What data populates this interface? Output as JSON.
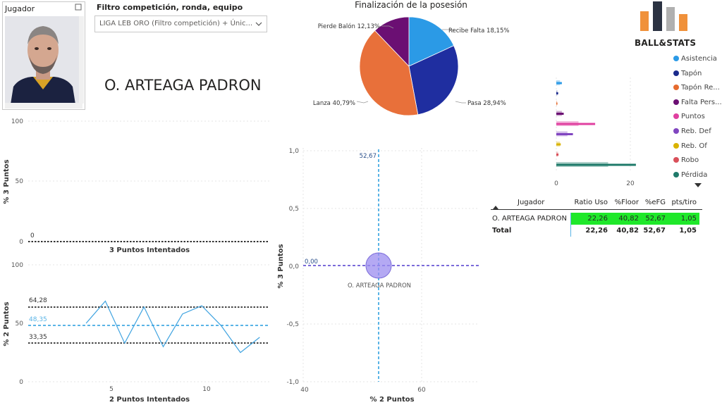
{
  "slicer": {
    "header": "Jugador"
  },
  "filter": {
    "title": "Filtro competición, ronda, equipo",
    "value": "LIGA LEB ORO (Filtro competición) + Únic..."
  },
  "player": {
    "name": "O. ARTEAGA PADRON"
  },
  "chart_3p": {
    "ylabel": "% 3 Puntos",
    "xlabel": "3 Puntos Intentados",
    "ticks": [
      "100",
      "50",
      "0"
    ],
    "ref_label": "0"
  },
  "chart_2p": {
    "ylabel": "% 2 Puntos",
    "xlabel": "2 Puntos Intentados",
    "yticks": [
      "100",
      "50",
      "0"
    ],
    "xticks": [
      "5",
      "10"
    ],
    "ref_labels": [
      "64,28",
      "48,35",
      "33,35"
    ]
  },
  "pie": {
    "title": "Finalización de la posesión",
    "labels": [
      "Recibe Falta 18,15%",
      "Pasa 28,94%",
      "Lanza 40,79%",
      "Pierde Balón 12,13%"
    ]
  },
  "scatter": {
    "ylabel": "% 3 Puntos",
    "xlabel": "% 2 Puntos",
    "yticks": [
      "1,0",
      "0,5",
      "0,0",
      "-0,5",
      "-1,0"
    ],
    "xticks": [
      "40",
      "60"
    ],
    "vline_label": "52,67",
    "hline_label": "0,00",
    "point_label": "O. ARTEAGA PADRON"
  },
  "logo": {
    "text": "BALL&STATS"
  },
  "legend": {
    "items": [
      {
        "label": "Asistencia",
        "color": "#2b9ae6"
      },
      {
        "label": "Tapón",
        "color": "#1a2a8c"
      },
      {
        "label": "Tapón Re...",
        "color": "#e66b2e"
      },
      {
        "label": "Falta Pers...",
        "color": "#6b0f73"
      },
      {
        "label": "Puntos",
        "color": "#e040a0"
      },
      {
        "label": "Reb. Def",
        "color": "#8045c0"
      },
      {
        "label": "Reb. Of",
        "color": "#d9b300"
      },
      {
        "label": "Robo",
        "color": "#d9505a"
      },
      {
        "label": "Pérdida",
        "color": "#1f7a6a"
      }
    ]
  },
  "bar_axis": {
    "ticks": [
      "0",
      "20"
    ]
  },
  "table": {
    "headers": [
      "Jugador",
      "Ratio Uso",
      "%Floor",
      "%eFG",
      "pts/tiro"
    ],
    "rows": [
      [
        "O. ARTEAGA PADRON",
        "22,26",
        "40,82",
        "52,67",
        "1,05"
      ],
      [
        "Total",
        "22,26",
        "40,82",
        "52,67",
        "1,05"
      ]
    ]
  },
  "colors": {
    "highlight_green": "#1fe82a",
    "ref_blue": "#5ab4e6",
    "scatter_line": "#7b6bd9"
  },
  "chart_data": [
    {
      "type": "line",
      "ylabel": "% 3 Puntos",
      "xlabel": "3 Puntos Intentados",
      "ylim": [
        0,
        100
      ],
      "series": [],
      "reference_lines": [
        0
      ]
    },
    {
      "type": "line",
      "ylabel": "% 2 Puntos",
      "xlabel": "2 Puntos Intentados",
      "ylim": [
        0,
        100
      ],
      "x": [
        4,
        5,
        6,
        7,
        8,
        9,
        10,
        11,
        12,
        13
      ],
      "series": [
        {
          "values": [
            50,
            69,
            33,
            64,
            30,
            58,
            65,
            48,
            25,
            38
          ]
        }
      ],
      "reference_lines": [
        64.28,
        48.35,
        33.35
      ]
    },
    {
      "type": "pie",
      "title": "Finalización de la posesión",
      "categories": [
        "Recibe Falta",
        "Pasa",
        "Lanza",
        "Pierde Balón"
      ],
      "values": [
        18.15,
        28.94,
        40.79,
        12.13
      ],
      "colors": [
        "#2b9ae6",
        "#1f2ea0",
        "#e8703a",
        "#6b0f73"
      ]
    },
    {
      "type": "scatter",
      "xlabel": "% 2 Puntos",
      "ylabel": "% 3 Puntos",
      "xlim": [
        40,
        70
      ],
      "ylim": [
        -1.0,
        1.0
      ],
      "points": [
        {
          "label": "O. ARTEAGA PADRON",
          "x": 52.67,
          "y": 0.0
        }
      ],
      "reference_lines": {
        "x": 52.67,
        "y": 0.0
      }
    },
    {
      "type": "bar",
      "orientation": "horizontal",
      "categories": [
        "Asistencia",
        "Tapón",
        "Tapón Re...",
        "Falta Pers...",
        "Puntos",
        "Reb. Def",
        "Reb. Of",
        "Robo",
        "Pérdida"
      ],
      "values": [
        1.5,
        0.5,
        0.3,
        2,
        10.5,
        4.5,
        1.2,
        0.6,
        21.5
      ],
      "secondary_values": [
        1,
        0.3,
        0.2,
        1.5,
        6,
        3,
        1,
        0.5,
        14
      ],
      "xlim": [
        0,
        25
      ]
    }
  ]
}
